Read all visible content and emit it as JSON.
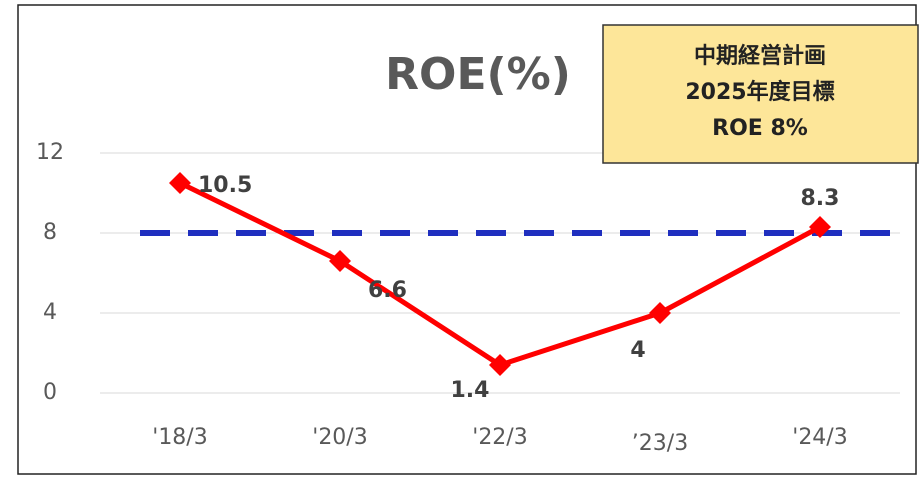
{
  "chart_data": {
    "type": "line",
    "title": "ROE(%)",
    "categories": [
      "'18/3",
      "'20/3",
      "'22/3",
      "’23/3",
      "'24/3"
    ],
    "series": [
      {
        "color": "#ff0000",
        "values": [
          10.5,
          6.6,
          1.4,
          4,
          8.3
        ]
      }
    ],
    "ylim": [
      0,
      12
    ],
    "yticks": [
      0,
      4,
      8,
      12
    ],
    "grid": true,
    "reference_line": {
      "value": 8,
      "color": "#1f2fbf"
    },
    "annotation": {
      "lines": [
        "中期経営計画",
        "2025年度目標",
        "ROE  8%"
      ],
      "color": "#fde699"
    }
  }
}
